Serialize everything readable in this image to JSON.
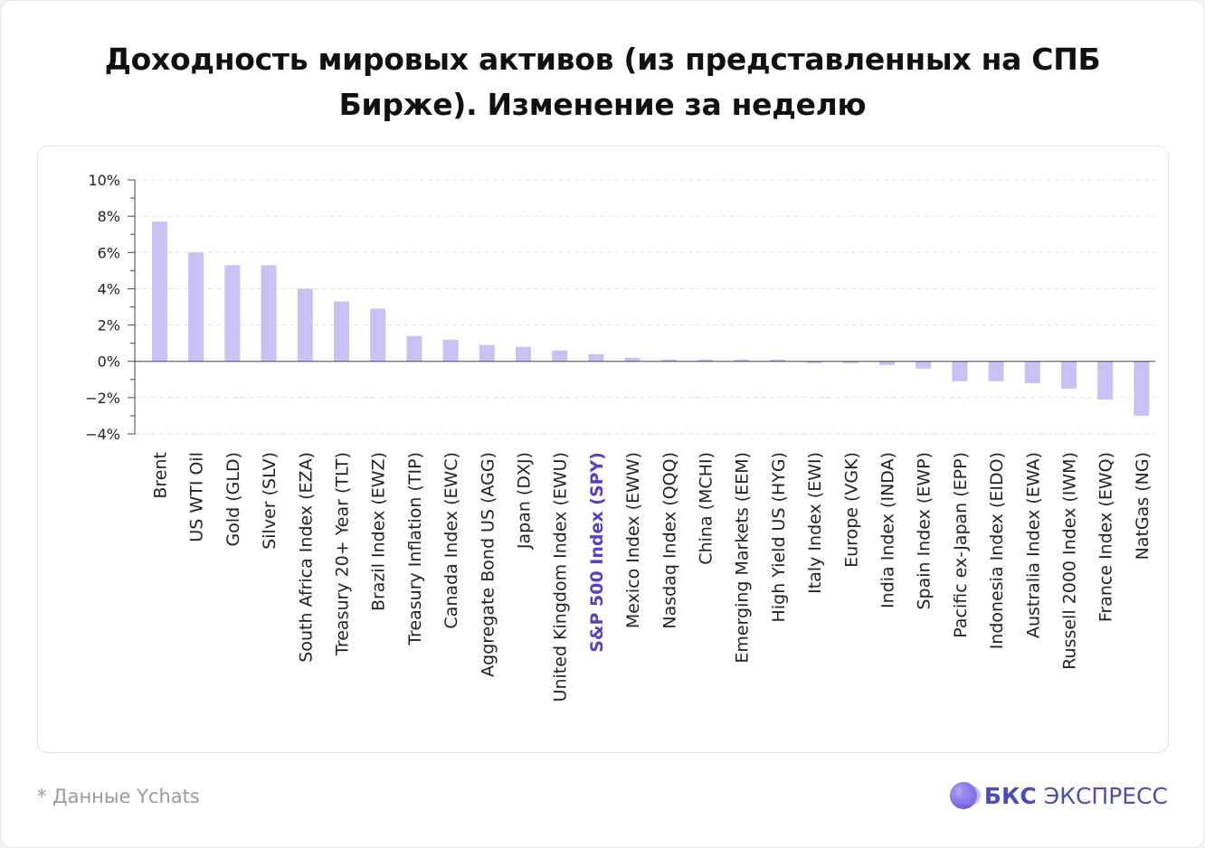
{
  "header": {
    "title_line1": "Доходность мировых активов (из представленных на СПБ",
    "title_line2": "Бирже). Изменение за неделю"
  },
  "footer": {
    "source": "* Данные Ychats",
    "brand_bold": "БКС",
    "brand_rest": "ЭКСПРЕСС"
  },
  "colors": {
    "bar": "#c9c0f3",
    "highlight_label": "#5a3fc0",
    "text": "#222222",
    "grid": "#e0e0e4"
  },
  "chart_data": {
    "type": "bar",
    "title": "Доходность мировых активов (из представленных на СПБ Бирже). Изменение за неделю",
    "xlabel": "",
    "ylabel": "",
    "ylim": [
      -4,
      10
    ],
    "yticks": [
      10,
      8,
      6,
      4,
      2,
      0,
      -2,
      -4
    ],
    "ytick_labels": [
      "10%",
      "8%",
      "6%",
      "4%",
      "2%",
      "0%",
      "−2%",
      "−4%"
    ],
    "grid": "horizontal dashed",
    "highlight_category": "S&P 500 Index (SPY)",
    "categories": [
      "Brent",
      "US WTI Oil",
      "Gold (GLD)",
      "Silver (SLV)",
      "South Africa Index (EZA)",
      "Treasury 20+ Year (TLT)",
      "Brazil Index (EWZ)",
      "Treasury Inflation (TIP)",
      "Canada Index (EWC)",
      "Aggregate Bond US (AGG)",
      "Japan (DXJ)",
      "United Kingdom Index (EWU)",
      "S&P 500 Index (SPY)",
      "Mexico Index (EWW)",
      "Nasdaq Index (QQQ)",
      "China (MCHI)",
      "Emerging Markets (EEM)",
      "High Yield US (HYG)",
      "Italy Index (EWI)",
      "Europe (VGK)",
      "India Index (INDA)",
      "Spain Index (EWP)",
      "Pacific ex-Japan (EPP)",
      "Indonesia Index (EIDO)",
      "Australia Index (EWA)",
      "Russell 2000 Index (IWM)",
      "France Index (EWQ)",
      "NatGas (NG)"
    ],
    "values": [
      7.7,
      6.0,
      5.3,
      5.3,
      4.0,
      3.3,
      2.9,
      1.4,
      1.2,
      0.9,
      0.8,
      0.6,
      0.4,
      0.2,
      0.1,
      0.1,
      0.1,
      0.1,
      -0.1,
      -0.1,
      -0.2,
      -0.4,
      -1.1,
      -1.1,
      -1.2,
      -1.5,
      -2.1,
      -3.0
    ]
  }
}
